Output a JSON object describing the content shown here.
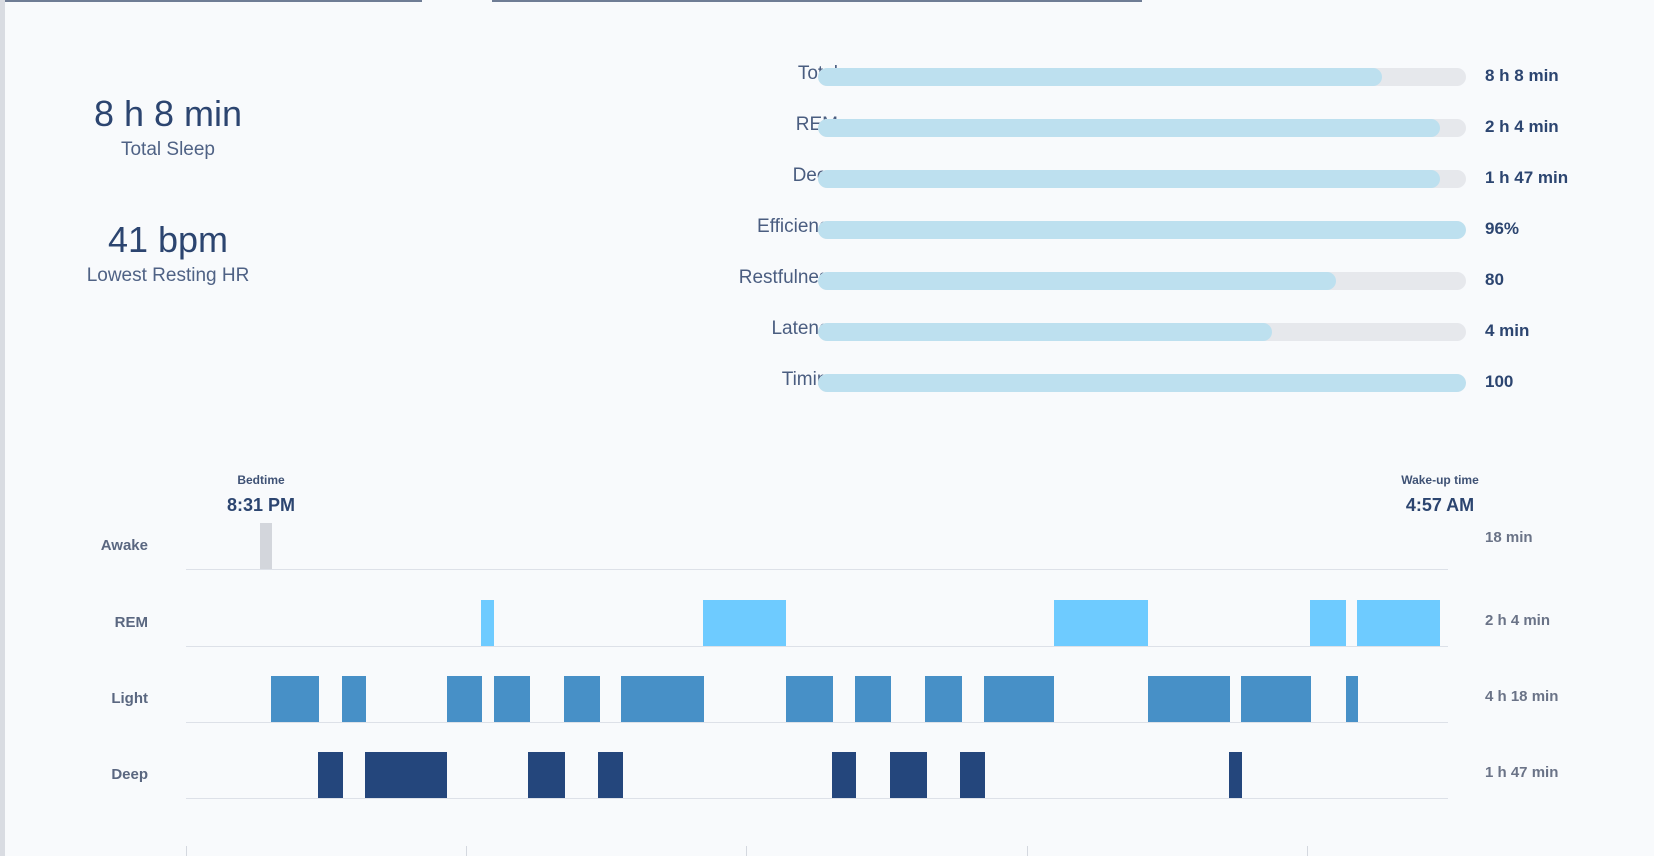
{
  "summary": {
    "total_sleep": {
      "value": "8 h 8 min",
      "label": "Total Sleep"
    },
    "lowest_hr": {
      "value": "41 bpm",
      "label": "Lowest Resting HR"
    }
  },
  "contributors": [
    {
      "label": "Total",
      "value": "8 h 8 min",
      "fill": 0.87
    },
    {
      "label": "REM",
      "value": "2 h 4 min",
      "fill": 0.96
    },
    {
      "label": "Deep",
      "value": "1 h 47 min",
      "fill": 0.96
    },
    {
      "label": "Efficiency",
      "value": "96%",
      "fill": 1.0
    },
    {
      "label": "Restfulness",
      "value": "80",
      "fill": 0.8
    },
    {
      "label": "Latency",
      "value": "4 min",
      "fill": 0.7
    },
    {
      "label": "Timing",
      "value": "100",
      "fill": 1.0
    }
  ],
  "hypnogram": {
    "bedtime": {
      "caption": "Bedtime",
      "time": "8:31 PM"
    },
    "wakeup": {
      "caption": "Wake-up time",
      "time": "4:57 AM"
    },
    "stages": [
      {
        "label": "Awake",
        "value": "18 min",
        "color": "#d3d6dc"
      },
      {
        "label": "REM",
        "value": "2 h 4 min",
        "color": "#6ecbff"
      },
      {
        "label": "Light",
        "value": "4 h 18 min",
        "color": "#4790c7"
      },
      {
        "label": "Deep",
        "value": "1 h 47 min",
        "color": "#24467c"
      }
    ]
  }
}
